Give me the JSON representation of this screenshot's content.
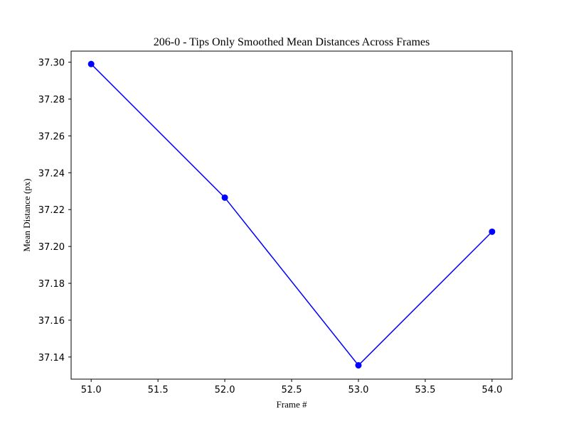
{
  "chart_data": {
    "type": "line",
    "title": "206-0 - Tips Only Smoothed Mean Distances Across Frames",
    "xlabel": "Frame #",
    "ylabel": "Mean Distance (px)",
    "xlim": [
      50.85,
      54.15
    ],
    "ylim": [
      37.128,
      37.306
    ],
    "x_ticks": [
      51.0,
      51.5,
      52.0,
      52.5,
      53.0,
      53.5,
      54.0
    ],
    "x_tick_labels": [
      "51.0",
      "51.5",
      "52.0",
      "52.5",
      "53.0",
      "53.5",
      "54.0"
    ],
    "y_ticks": [
      37.14,
      37.16,
      37.18,
      37.2,
      37.22,
      37.24,
      37.26,
      37.28,
      37.3
    ],
    "y_tick_labels": [
      "37.14",
      "37.16",
      "37.18",
      "37.20",
      "37.22",
      "37.24",
      "37.26",
      "37.28",
      "37.30"
    ],
    "grid": false,
    "series": [
      {
        "color": "#0000ff",
        "marker": "circle",
        "x": [
          51.0,
          52.0,
          53.0,
          54.0
        ],
        "y": [
          37.299,
          37.2265,
          37.1355,
          37.208
        ]
      }
    ]
  }
}
